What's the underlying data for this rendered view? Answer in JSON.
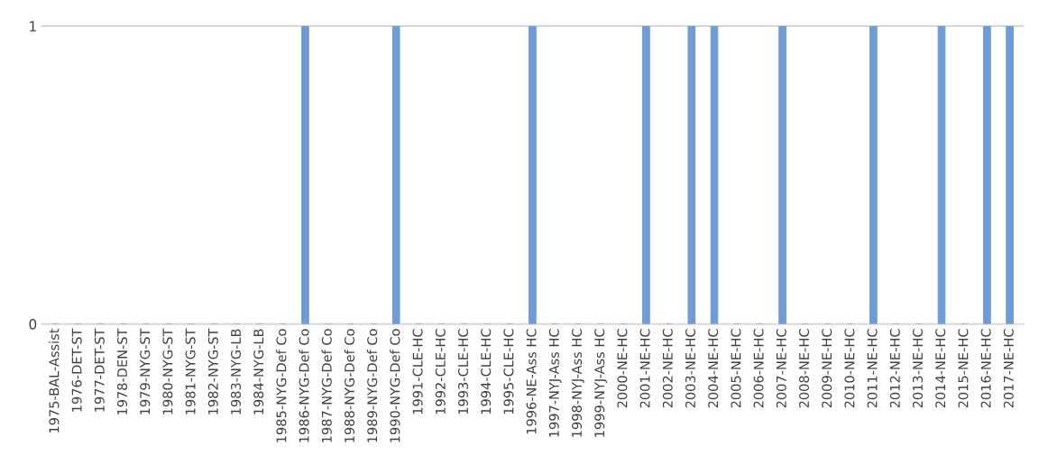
{
  "chart_data": {
    "type": "bar",
    "categories": [
      "1975-BAL-Assist",
      "1976-DET-ST",
      "1977-DET-ST",
      "1978-DEN-ST",
      "1979-NYG-ST",
      "1980-NYG-ST",
      "1981-NYG-ST",
      "1982-NYG-ST",
      "1983-NYG-LB",
      "1984-NYG-LB",
      "1985-NYG-Def Co",
      "1986-NYG-Def Co",
      "1987-NYG-Def Co",
      "1988-NYG-Def Co",
      "1989-NYG-Def Co",
      "1990-NYG-Def Co",
      "1991-CLE-HC",
      "1992-CLE-HC",
      "1993-CLE-HC",
      "1994-CLE-HC",
      "1995-CLE-HC",
      "1996-NE-Ass HC",
      "1997-NYJ-Ass HC",
      "1998-NYJ-Ass HC",
      "1999-NYJ-Ass HC",
      "2000-NE-HC",
      "2001-NE-HC",
      "2002-NE-HC",
      "2003-NE-HC",
      "2004-NE-HC",
      "2005-NE-HC",
      "2006-NE-HC",
      "2007-NE-HC",
      "2008-NE-HC",
      "2009-NE-HC",
      "2010-NE-HC",
      "2011-NE-HC",
      "2012-NE-HC",
      "2013-NE-HC",
      "2014-NE-HC",
      "2015-NE-HC",
      "2016-NE-HC",
      "2017-NE-HC"
    ],
    "values": [
      0,
      0,
      0,
      0,
      0,
      0,
      0,
      0,
      0,
      0,
      0,
      1,
      0,
      0,
      0,
      1,
      0,
      0,
      0,
      0,
      0,
      1,
      0,
      0,
      0,
      0,
      1,
      0,
      1,
      1,
      0,
      0,
      1,
      0,
      0,
      0,
      1,
      0,
      0,
      1,
      0,
      1,
      1
    ],
    "color": "#6f9bd6",
    "ylim": [
      0,
      1
    ],
    "yticks": [
      0,
      1
    ],
    "grid": "y"
  }
}
